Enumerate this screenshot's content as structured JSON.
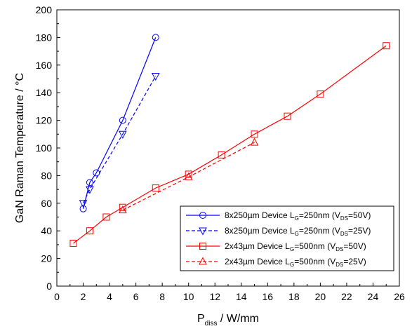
{
  "chart_data": {
    "type": "line",
    "xlabel": {
      "main": "P",
      "sub": "diss",
      "rest": " / W/mm"
    },
    "ylabel": "GaN Raman Temperature / °C",
    "xlim": [
      0,
      26
    ],
    "ylim": [
      0,
      200
    ],
    "xticks": [
      0,
      2,
      4,
      6,
      8,
      10,
      12,
      14,
      16,
      18,
      20,
      22,
      24,
      26
    ],
    "yticks": [
      0,
      20,
      40,
      60,
      80,
      100,
      120,
      140,
      160,
      180,
      200
    ],
    "grid": false,
    "legend_position": "bottom-right",
    "series": [
      {
        "legend": [
          {
            "t": "8x250µm Device L"
          },
          {
            "t": "G",
            "sub": true
          },
          {
            "t": "=250nm (V"
          },
          {
            "t": "DS",
            "sub": true
          },
          {
            "t": "=50V)"
          }
        ],
        "color": "#0000ff",
        "marker": "circle",
        "dashed": false,
        "x": [
          2.0,
          2.5,
          3.0,
          5.0,
          7.5
        ],
        "y": [
          56,
          75,
          82,
          120,
          180
        ]
      },
      {
        "legend": [
          {
            "t": "8x250µm Device L"
          },
          {
            "t": "G",
            "sub": true
          },
          {
            "t": "=250nm (V"
          },
          {
            "t": "DS",
            "sub": true
          },
          {
            "t": "=25V)"
          }
        ],
        "color": "#0000ff",
        "marker": "triangle-down",
        "dashed": true,
        "x": [
          2.0,
          2.5,
          5.0,
          7.5
        ],
        "y": [
          60,
          70,
          110,
          152
        ]
      },
      {
        "legend": [
          {
            "t": "2x43µm Device L"
          },
          {
            "t": "G",
            "sub": true
          },
          {
            "t": "=500nm (V"
          },
          {
            "t": "DS",
            "sub": true
          },
          {
            "t": "=50V)"
          }
        ],
        "color": "#ff0000",
        "marker": "square",
        "dashed": false,
        "x": [
          1.25,
          2.5,
          3.75,
          5.0,
          7.5,
          10.0,
          12.5,
          15.0,
          17.5,
          20.0,
          25.0
        ],
        "y": [
          31,
          40,
          50,
          57,
          71,
          81,
          95,
          110,
          123,
          139,
          174
        ]
      },
      {
        "legend": [
          {
            "t": "2x43µm Device L"
          },
          {
            "t": "G",
            "sub": true
          },
          {
            "t": "=500nm (V"
          },
          {
            "t": "DS",
            "sub": true
          },
          {
            "t": "=25V)"
          }
        ],
        "color": "#ff0000",
        "marker": "triangle-up",
        "dashed": true,
        "x": [
          5.0,
          10.0,
          15.0
        ],
        "y": [
          55,
          79,
          104
        ]
      }
    ]
  }
}
